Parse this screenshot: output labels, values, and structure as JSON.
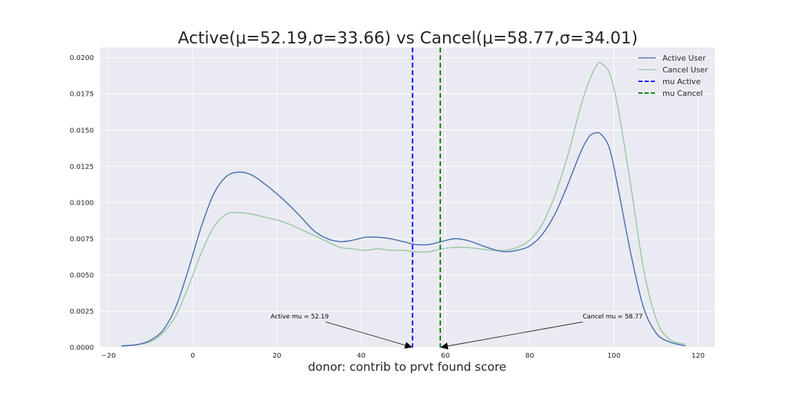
{
  "chart_data": {
    "type": "line",
    "title": "Active(μ=52.19,σ=33.66) vs Cancel(μ=58.77,σ=34.01)",
    "xlabel": "donor: contrib to prvt found score",
    "ylabel": "",
    "xlim": [
      -22,
      124
    ],
    "ylim": [
      0,
      0.0207
    ],
    "grid": true,
    "x_ticks": [
      -20,
      0,
      20,
      40,
      60,
      80,
      100,
      120
    ],
    "x_tick_labels": [
      "−20",
      "0",
      "20",
      "40",
      "60",
      "80",
      "100",
      "120"
    ],
    "y_ticks": [
      0,
      0.0025,
      0.005,
      0.0075,
      0.01,
      0.0125,
      0.015,
      0.0175,
      0.02
    ],
    "y_tick_labels": [
      "0.0000",
      "0.0025",
      "0.0050",
      "0.0075",
      "0.0100",
      "0.0125",
      "0.0150",
      "0.0175",
      "0.0200"
    ],
    "legend_position": "top-right",
    "series": [
      {
        "name": "Active User",
        "color": "#4c72b0",
        "style": "solid",
        "x": [
          -17,
          -13,
          -10,
          -7,
          -4,
          -1,
          2,
          5,
          8,
          11,
          14,
          17,
          20,
          23,
          26,
          29,
          32,
          35,
          38,
          41,
          44,
          47,
          50,
          53,
          56,
          59,
          62,
          65,
          68,
          71,
          74,
          77,
          80,
          83,
          86,
          89,
          92,
          94,
          95.5,
          97,
          99,
          101,
          104,
          107,
          110,
          113,
          117
        ],
        "y": [
          0.0001,
          0.0002,
          0.0005,
          0.0012,
          0.0028,
          0.0054,
          0.0083,
          0.0106,
          0.0118,
          0.0121,
          0.0119,
          0.0113,
          0.0106,
          0.0098,
          0.0089,
          0.008,
          0.0075,
          0.0073,
          0.0074,
          0.0076,
          0.0076,
          0.0075,
          0.0073,
          0.0071,
          0.0071,
          0.0073,
          0.0075,
          0.0074,
          0.0071,
          0.0068,
          0.0066,
          0.0067,
          0.007,
          0.0078,
          0.0092,
          0.0112,
          0.0134,
          0.0145,
          0.0148,
          0.0147,
          0.0137,
          0.011,
          0.0065,
          0.0028,
          0.001,
          0.0004,
          0.0001
        ]
      },
      {
        "name": "Cancel User",
        "color": "#9bc9a6",
        "style": "solid",
        "x": [
          -17,
          -13,
          -10,
          -7,
          -4,
          -1,
          2,
          5,
          8,
          11,
          14,
          17,
          20,
          23,
          26,
          29,
          32,
          35,
          38,
          41,
          44,
          47,
          50,
          53,
          56,
          59,
          62,
          65,
          68,
          71,
          74,
          77,
          80,
          83,
          86,
          89,
          92,
          94,
          96,
          97,
          99,
          101,
          104,
          107,
          110,
          113,
          117
        ],
        "y": [
          0.0001,
          0.0002,
          0.0004,
          0.001,
          0.0022,
          0.0042,
          0.0065,
          0.0083,
          0.0092,
          0.0093,
          0.0092,
          0.009,
          0.0088,
          0.0085,
          0.0081,
          0.0077,
          0.0073,
          0.0069,
          0.0068,
          0.0067,
          0.0068,
          0.0067,
          0.0067,
          0.0066,
          0.0066,
          0.0068,
          0.0069,
          0.0069,
          0.0068,
          0.0067,
          0.0067,
          0.0069,
          0.0074,
          0.0085,
          0.0105,
          0.0132,
          0.0165,
          0.0183,
          0.0195,
          0.0196,
          0.0189,
          0.0165,
          0.0112,
          0.0055,
          0.002,
          0.0006,
          0.0002
        ]
      }
    ],
    "mean_lines": [
      {
        "name": "mu Active",
        "x": 52.19,
        "color": "#0000ff",
        "style": "dashed"
      },
      {
        "name": "mu Cancel",
        "x": 58.77,
        "color": "#008000",
        "style": "dashed"
      }
    ],
    "legend": [
      {
        "label": "Active User",
        "color": "#4c72b0",
        "style": "solid"
      },
      {
        "label": "Cancel User",
        "color": "#9bc9a6",
        "style": "solid"
      },
      {
        "label": "mu Active",
        "color": "#0000ff",
        "style": "dashed"
      },
      {
        "label": "mu Cancel",
        "color": "#008000",
        "style": "dashed"
      }
    ],
    "annotations": [
      {
        "text": "Active mu = 52.19",
        "text_x": 18.5,
        "text_y": 0.0019,
        "target_x": 52.19,
        "target_y": 0,
        "anchor": "start"
      },
      {
        "text": "Cancel mu = 58.77",
        "text_x": 92.6,
        "text_y": 0.0019,
        "target_x": 58.77,
        "target_y": 0,
        "anchor": "start"
      }
    ],
    "colors": {
      "plot_background": "#eaeaf2",
      "grid": "#ffffff",
      "text": "#262626"
    }
  }
}
